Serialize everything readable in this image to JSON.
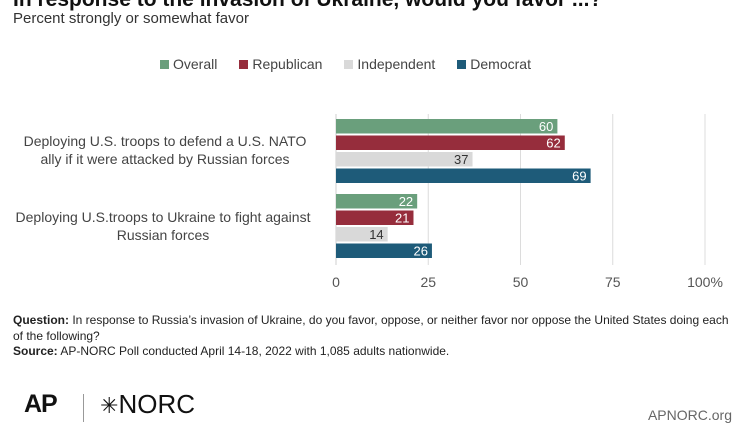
{
  "header": {
    "title": "In response to the invasion of Ukraine, would you favor ...?",
    "subtitle": "Percent strongly or somewhat favor"
  },
  "legend": [
    {
      "label": "Overall",
      "color": "#6a9f7c"
    },
    {
      "label": "Republican",
      "color": "#962d3c"
    },
    {
      "label": "Independent",
      "color": "#d9d9d9"
    },
    {
      "label": "Democrat",
      "color": "#1e5b79"
    }
  ],
  "chart_data": {
    "type": "bar",
    "orientation": "horizontal",
    "categories": [
      "Deploying U.S. troops to defend a U.S. NATO ally if it were attacked by Russian forces",
      "Deploying U.S.troops to Ukraine to fight against Russian forces"
    ],
    "category_lines": [
      [
        "Deploying U.S. troops to defend a U.S. NATO",
        "ally if it were attacked by Russian forces"
      ],
      [
        "Deploying U.S.troops to Ukraine to fight against",
        "Russian forces"
      ]
    ],
    "series": [
      {
        "name": "Overall",
        "color": "#6a9f7c",
        "values": [
          60,
          22
        ]
      },
      {
        "name": "Republican",
        "color": "#962d3c",
        "values": [
          62,
          21
        ]
      },
      {
        "name": "Independent",
        "color": "#d9d9d9",
        "values": [
          37,
          14
        ]
      },
      {
        "name": "Democrat",
        "color": "#1e5b79",
        "values": [
          69,
          26
        ]
      }
    ],
    "xlim": [
      0,
      100
    ],
    "x_ticks": [
      "0",
      "25",
      "50",
      "75",
      "100%"
    ],
    "grid": true,
    "legend_position": "top"
  },
  "footnote": {
    "question_label": "Question:",
    "question_text": " In response to Russia’s invasion of Ukraine, do you favor, oppose, or neither favor nor oppose the United States doing each of the following?",
    "source_label": "Source:",
    "source_text": " AP-NORC Poll conducted April 14-18, 2022 with 1,085 adults nationwide."
  },
  "branding": {
    "ap": "AP",
    "norc_symbol": "✳",
    "norc": "NORC",
    "site": "APNORC.org"
  }
}
